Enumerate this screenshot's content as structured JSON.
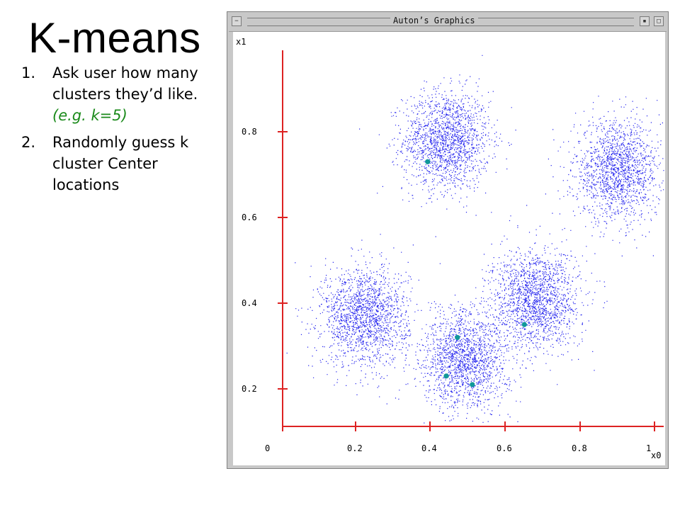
{
  "slide": {
    "title": "K-means",
    "steps": [
      {
        "number": "1.",
        "text": "Ask user how many clusters they’d like.",
        "example": "(e.g. k=5)"
      },
      {
        "number": "2.",
        "text": "Randomly guess k cluster Center locations"
      }
    ]
  },
  "window": {
    "title": "Auton’s Graphics"
  },
  "chart_data": {
    "type": "scatter",
    "xlabel": "x0",
    "ylabel": "x1",
    "xlim": [
      -0.05,
      1.07
    ],
    "ylim": [
      0.08,
      1.03
    ],
    "x_ticks": [
      0,
      0.2,
      0.4,
      0.6,
      0.8,
      1
    ],
    "x_tick_labels": [
      "0",
      "0.2",
      "0.4",
      "0.6",
      "0.8",
      "1"
    ],
    "y_ticks": [
      0.2,
      0.4,
      0.6,
      0.8
    ],
    "y_tick_labels": [
      "0.2",
      "0.4",
      "0.6",
      "0.8"
    ],
    "axis_color": "#dd2222",
    "point_color": "#2222ee",
    "center_color": "#119999",
    "clusters": [
      {
        "cx": 0.44,
        "cy": 0.78,
        "sd": 0.058,
        "n": 1700
      },
      {
        "cx": 0.9,
        "cy": 0.71,
        "sd": 0.058,
        "n": 1600
      },
      {
        "cx": 0.22,
        "cy": 0.37,
        "sd": 0.058,
        "n": 1700
      },
      {
        "cx": 0.68,
        "cy": 0.41,
        "sd": 0.058,
        "n": 1700
      },
      {
        "cx": 0.49,
        "cy": 0.27,
        "sd": 0.058,
        "n": 1700
      }
    ],
    "centers": [
      {
        "x": 0.39,
        "y": 0.73
      },
      {
        "x": 0.65,
        "y": 0.35
      },
      {
        "x": 0.47,
        "y": 0.32
      },
      {
        "x": 0.44,
        "y": 0.23
      },
      {
        "x": 0.51,
        "y": 0.21
      }
    ]
  }
}
